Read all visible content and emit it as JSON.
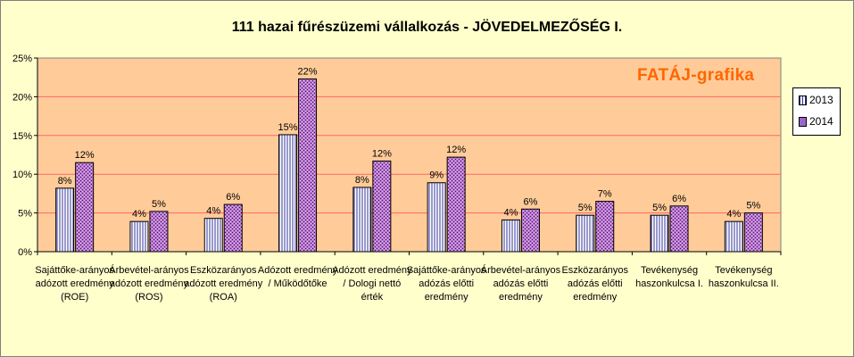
{
  "chart_data": {
    "type": "bar",
    "title": "111 hazai fűrészüzemi vállalkozás - JÖVEDELMEZŐSÉG I.",
    "watermark": "FATÁJ-grafika",
    "ylim": [
      0,
      25
    ],
    "yticks": [
      0,
      5,
      10,
      15,
      20,
      25
    ],
    "ytick_labels": [
      "0%",
      "5%",
      "10%",
      "15%",
      "20%",
      "25%"
    ],
    "grid": true,
    "legend_position": "right",
    "categories": [
      [
        "Sajáttőke-arányos",
        "adózott eredmény",
        "(ROE)"
      ],
      [
        "Árbevétel-arányos",
        "adózott eredmény",
        "(ROS)"
      ],
      [
        "Eszközarányos",
        "adózott eredmény",
        "(ROA)"
      ],
      [
        "Adózott eredmény",
        "/ Működőtőke"
      ],
      [
        "Adózott eredmény",
        "/ Dologi nettó",
        "érték"
      ],
      [
        "Sajáttőke-arányos",
        "adózás előtti",
        "eredmény"
      ],
      [
        "Árbevétel-arányos",
        "adózás előtti",
        "eredmény"
      ],
      [
        "Eszközarányos",
        "adózás előtti",
        "eredmény"
      ],
      [
        "Tevékenység",
        "haszonkulcsa I."
      ],
      [
        "Tevékenység",
        "haszonkulcsa II."
      ]
    ],
    "series": [
      {
        "name": "2013",
        "values": [
          8.2,
          3.9,
          4.3,
          15.1,
          8.3,
          8.9,
          4.1,
          4.7,
          4.7,
          3.9
        ],
        "labels": [
          "8%",
          "4%",
          "4%",
          "15%",
          "8%",
          "9%",
          "4%",
          "5%",
          "5%",
          "4%"
        ],
        "color": "#ffffff",
        "pattern_color": "#333399"
      },
      {
        "name": "2014",
        "values": [
          11.5,
          5.2,
          6.1,
          22.3,
          11.7,
          12.2,
          5.5,
          6.5,
          5.9,
          5.0
        ],
        "labels": [
          "12%",
          "5%",
          "6%",
          "22%",
          "12%",
          "12%",
          "6%",
          "7%",
          "6%",
          "5%"
        ],
        "color": "#9966cc",
        "pattern_color": "#660066"
      }
    ],
    "colors": {
      "plot_background": "#ffcc99",
      "chart_background": "#ffffcc",
      "gridline": "#ff6666",
      "watermark": "#ff6600"
    }
  }
}
